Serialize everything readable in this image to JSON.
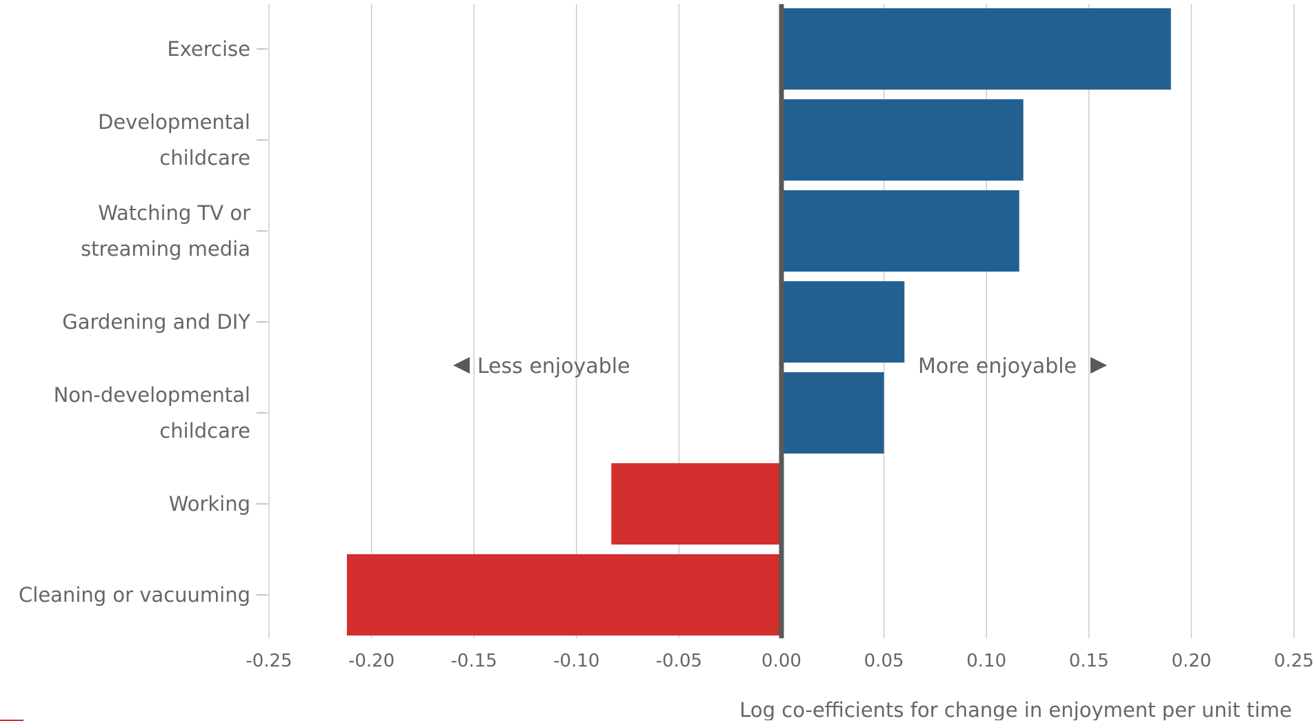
{
  "chart_data": {
    "type": "bar",
    "orientation": "horizontal",
    "categories": [
      [
        "Exercise"
      ],
      [
        "Developmental",
        "childcare"
      ],
      [
        "Watching TV or",
        "streaming media"
      ],
      [
        "Gardening and DIY"
      ],
      [
        "Non-developmental",
        "childcare"
      ],
      [
        "Working"
      ],
      [
        "Cleaning or vacuuming"
      ]
    ],
    "values": [
      0.19,
      0.118,
      0.116,
      0.06,
      0.05,
      -0.083,
      -0.212
    ],
    "xlim": [
      -0.25,
      0.25
    ],
    "x_ticks": [
      "-0.25",
      "-0.20",
      "-0.15",
      "-0.10",
      "-0.05",
      "0.00",
      "0.05",
      "0.10",
      "0.15",
      "0.20",
      "0.25"
    ],
    "xlabel": "Log co-efficients for change in enjoyment per unit time",
    "ylabel": "",
    "grid": "vertical",
    "colors": {
      "positive": "#236092",
      "negative": "#d32f2f",
      "zero_line": "#595959",
      "grid": "#cccccc",
      "text": "#666666"
    },
    "annotations": {
      "left": "Less enjoyable",
      "right": "More enjoyable"
    }
  }
}
